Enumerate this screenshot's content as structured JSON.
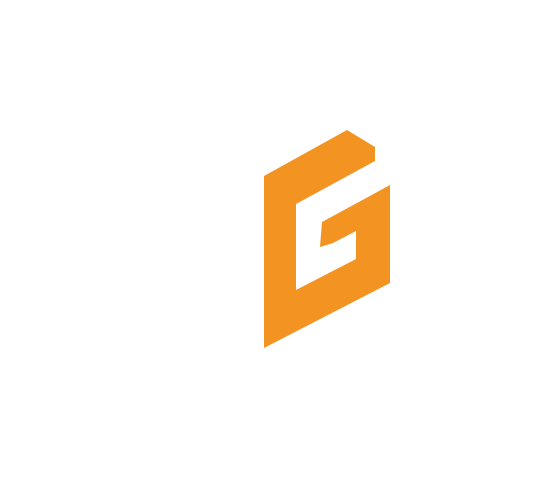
{
  "logo": {
    "name": "g-logo-icon",
    "letter": "G",
    "color": "#F39322"
  },
  "background": {
    "color": "#FFFFFF"
  }
}
